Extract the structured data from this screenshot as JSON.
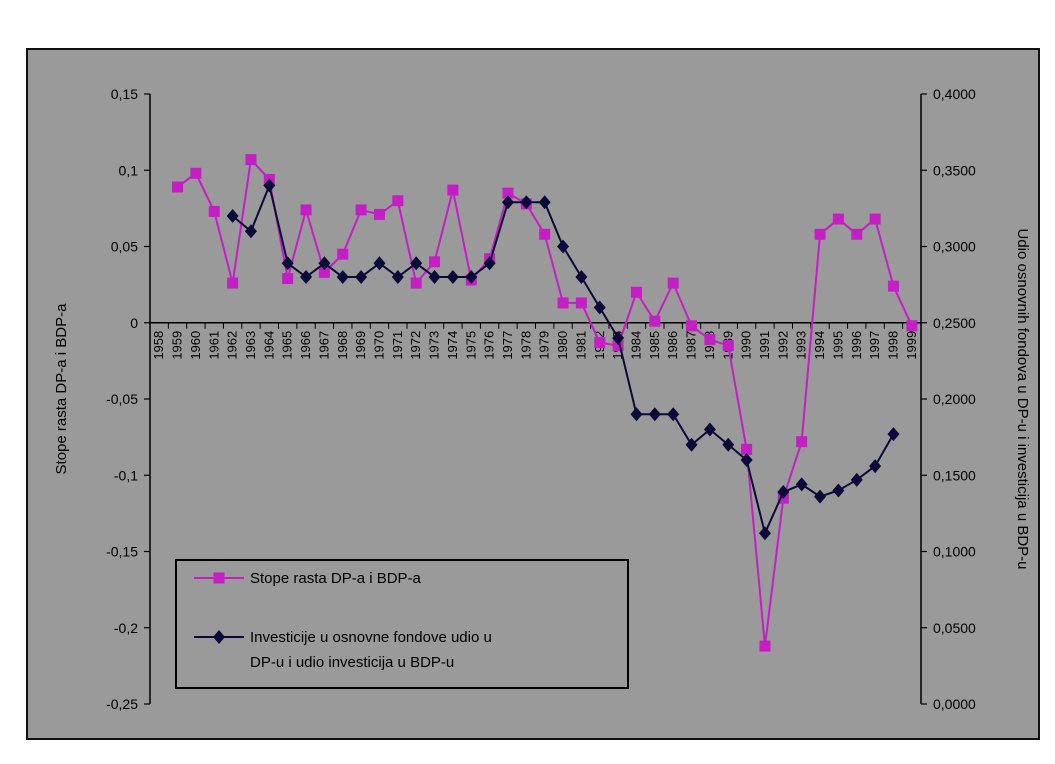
{
  "colors": {
    "background": "#9a9a9a",
    "series_growth": "#c41fc4",
    "series_invest": "#0b0b3a",
    "axis": "#000000"
  },
  "chart_data": {
    "type": "line",
    "title": "",
    "ylabel": "Stope rasta DP-a i BDP-a",
    "y2label": "Udio osnovnih fondova u DP-u i investicija u BDP-u",
    "ylim": [
      -0.25,
      0.15
    ],
    "y2lim": [
      0.0,
      0.4
    ],
    "yticks": [
      "0,15",
      "0,1",
      "0,05",
      "0",
      "-0,05",
      "-0,1",
      "-0,15",
      "-0,2",
      "-0,25"
    ],
    "y2ticks": [
      "0,4000",
      "0,3500",
      "0,3000",
      "0,2500",
      "0,2000",
      "0,1500",
      "0,1000",
      "0,0500",
      "0,0000"
    ],
    "grid": false,
    "legend_position": "bottom-left",
    "categories": [
      "1958",
      "1959",
      "1960",
      "1961",
      "1962",
      "1963",
      "1964",
      "1965",
      "1966",
      "1967",
      "1968",
      "1969",
      "1970",
      "1971",
      "1972",
      "1973",
      "1974",
      "1975",
      "1976",
      "1977",
      "1978",
      "1979",
      "1980",
      "1981",
      "1982",
      "1983",
      "1984",
      "1985",
      "1986",
      "1987",
      "1988",
      "1989",
      "1990",
      "1991",
      "1992",
      "1993",
      "1994",
      "1995",
      "1996",
      "1997",
      "1998",
      "1999"
    ],
    "series": [
      {
        "name": "Stope rasta DP-a i BDP-a",
        "axis": "left",
        "marker": "square",
        "values": [
          null,
          0.089,
          0.098,
          0.073,
          0.026,
          0.107,
          0.094,
          0.029,
          0.074,
          0.033,
          0.045,
          0.074,
          0.071,
          0.08,
          0.026,
          0.04,
          0.087,
          0.028,
          0.042,
          0.085,
          0.078,
          0.058,
          0.013,
          0.013,
          -0.013,
          -0.015,
          0.02,
          0.001,
          0.026,
          -0.002,
          -0.011,
          -0.015,
          -0.083,
          -0.212,
          -0.115,
          -0.078,
          0.058,
          0.068,
          0.058,
          0.068,
          0.024,
          -0.002
        ]
      },
      {
        "name": "Investicije u osnovne fondove udio u DP-u i udio investicija u BDP-u",
        "axis": "right",
        "marker": "diamond",
        "values": [
          null,
          null,
          null,
          null,
          0.32,
          0.31,
          0.34,
          0.289,
          0.28,
          0.289,
          0.28,
          0.28,
          0.289,
          0.28,
          0.289,
          0.28,
          0.28,
          0.28,
          0.289,
          0.329,
          0.329,
          0.329,
          0.3,
          0.28,
          0.26,
          0.24,
          0.19,
          0.19,
          0.19,
          0.17,
          0.18,
          0.17,
          0.16,
          0.112,
          0.139,
          0.144,
          0.136,
          0.14,
          0.147,
          0.156,
          0.177,
          null
        ]
      }
    ]
  }
}
